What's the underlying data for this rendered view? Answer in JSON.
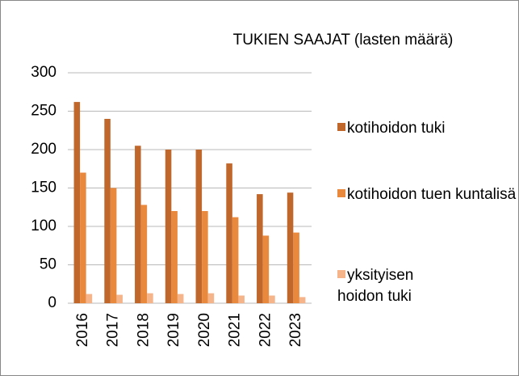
{
  "chart_data": {
    "type": "bar",
    "title": "TUKIEN SAAJAT (lasten määrä)",
    "categories": [
      "2016",
      "2017",
      "2018",
      "2019",
      "2020",
      "2021",
      "2022",
      "2023"
    ],
    "series": [
      {
        "name": "kotihoidon tuki",
        "color": "#c0672c",
        "values": [
          262,
          240,
          205,
          200,
          200,
          182,
          142,
          144
        ]
      },
      {
        "name": "kotihoidon tuen kuntalisä",
        "color": "#e9893e",
        "values": [
          170,
          150,
          128,
          120,
          120,
          112,
          88,
          92
        ]
      },
      {
        "name": "yksityisen hoidon tuki",
        "color": "#f6b48a",
        "values": [
          12,
          11,
          13,
          12,
          13,
          10,
          10,
          8
        ]
      }
    ],
    "ylim": [
      0,
      300
    ],
    "yticks": [
      0,
      50,
      100,
      150,
      200,
      250,
      300
    ],
    "grid": true,
    "legend": "right"
  }
}
